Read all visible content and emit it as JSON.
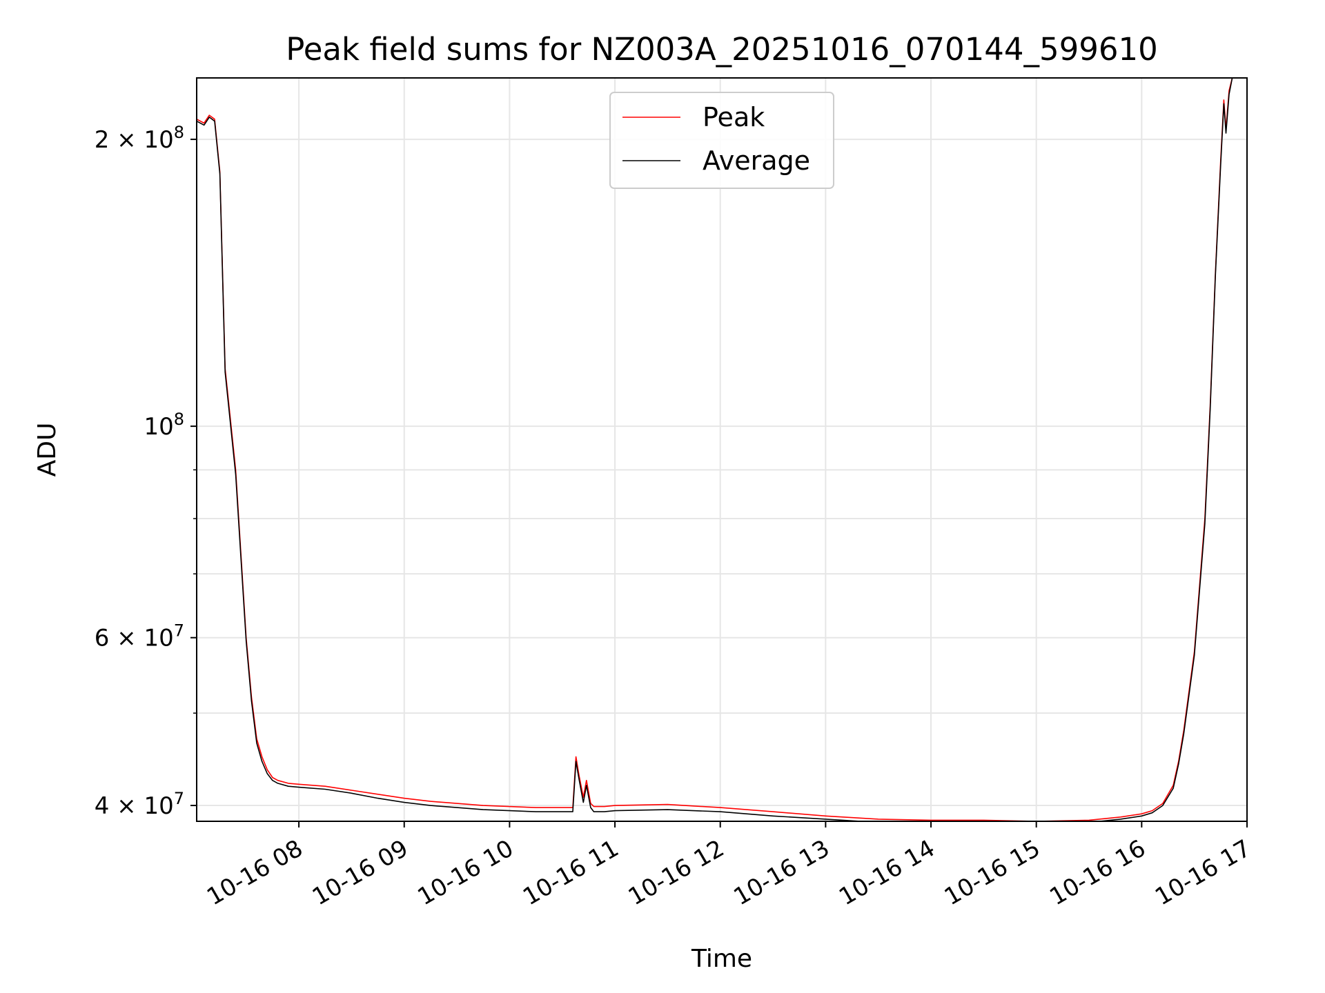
{
  "chart_data": {
    "type": "line",
    "title": "Peak field sums for NZ003A_20251016_070144_599610",
    "xlabel": "Time",
    "ylabel": "ADU",
    "y_scale": "log",
    "xlim_hours": [
      7.03,
      17.0
    ],
    "ylim": [
      38500000,
      232000000
    ],
    "grid": true,
    "legend_position": "upper center",
    "x_ticks": [
      {
        "value": 8,
        "label": "10-16 08"
      },
      {
        "value": 9,
        "label": "10-16 09"
      },
      {
        "value": 10,
        "label": "10-16 10"
      },
      {
        "value": 11,
        "label": "10-16 11"
      },
      {
        "value": 12,
        "label": "10-16 12"
      },
      {
        "value": 13,
        "label": "10-16 13"
      },
      {
        "value": 14,
        "label": "10-16 14"
      },
      {
        "value": 15,
        "label": "10-16 15"
      },
      {
        "value": 16,
        "label": "10-16 16"
      },
      {
        "value": 17,
        "label": "10-16 17"
      }
    ],
    "y_major_ticks": [
      {
        "value": 40000000,
        "mantissa": "4",
        "exponent": "7"
      },
      {
        "value": 60000000,
        "mantissa": "6",
        "exponent": "7"
      },
      {
        "value": 100000000,
        "mantissa": "",
        "exponent": "8"
      },
      {
        "value": 200000000,
        "mantissa": "2",
        "exponent": "8"
      }
    ],
    "y_minor_ticks": [
      50000000,
      70000000,
      80000000,
      90000000
    ],
    "series": [
      {
        "name": "Peak",
        "color": "#ff0000",
        "x": [
          7.03,
          7.1,
          7.15,
          7.2,
          7.25,
          7.3,
          7.4,
          7.5,
          7.55,
          7.6,
          7.65,
          7.7,
          7.75,
          7.8,
          7.9,
          8.0,
          8.25,
          8.5,
          8.75,
          9.0,
          9.25,
          9.5,
          9.75,
          10.0,
          10.25,
          10.4,
          10.6,
          10.63,
          10.66,
          10.7,
          10.73,
          10.77,
          10.8,
          10.9,
          11.0,
          11.5,
          12.0,
          12.5,
          13.0,
          13.5,
          14.0,
          14.5,
          15.0,
          15.5,
          15.8,
          16.0,
          16.1,
          16.2,
          16.3,
          16.35,
          16.4,
          16.5,
          16.6,
          16.65,
          16.7,
          16.75,
          16.78,
          16.8,
          16.83,
          16.86,
          16.9,
          17.0
        ],
        "y": [
          210000000,
          208000000,
          212000000,
          210000000,
          185000000,
          115000000,
          90000000,
          60000000,
          52000000,
          47000000,
          45000000,
          43600000,
          42800000,
          42500000,
          42200000,
          42100000,
          41900000,
          41500000,
          41100000,
          40700000,
          40400000,
          40200000,
          40000000,
          39900000,
          39800000,
          39800000,
          39800000,
          45000000,
          43000000,
          40800000,
          42500000,
          40200000,
          39900000,
          39900000,
          40000000,
          40100000,
          39800000,
          39400000,
          39000000,
          38700000,
          38600000,
          38600000,
          38500000,
          38600000,
          38900000,
          39200000,
          39500000,
          40200000,
          42000000,
          44500000,
          48000000,
          58000000,
          80000000,
          105000000,
          145000000,
          190000000,
          220000000,
          205000000,
          225000000,
          232000000,
          232000000,
          232000000
        ]
      },
      {
        "name": "Average",
        "color": "#000000",
        "x": [
          7.03,
          7.1,
          7.15,
          7.2,
          7.25,
          7.3,
          7.4,
          7.5,
          7.55,
          7.6,
          7.65,
          7.7,
          7.75,
          7.8,
          7.9,
          8.0,
          8.25,
          8.5,
          8.75,
          9.0,
          9.25,
          9.5,
          9.75,
          10.0,
          10.25,
          10.4,
          10.6,
          10.63,
          10.66,
          10.7,
          10.73,
          10.77,
          10.8,
          10.9,
          11.0,
          11.5,
          12.0,
          12.5,
          13.0,
          13.5,
          14.0,
          14.5,
          15.0,
          15.5,
          15.8,
          16.0,
          16.1,
          16.2,
          16.3,
          16.35,
          16.4,
          16.5,
          16.6,
          16.65,
          16.7,
          16.75,
          16.78,
          16.8,
          16.83,
          16.86,
          16.9,
          17.0
        ],
        "y": [
          209000000,
          207000000,
          211000000,
          209000000,
          184000000,
          114000000,
          89000000,
          59500000,
          51500000,
          46500000,
          44500000,
          43200000,
          42500000,
          42200000,
          41900000,
          41800000,
          41600000,
          41200000,
          40700000,
          40300000,
          40000000,
          39800000,
          39600000,
          39500000,
          39400000,
          39400000,
          39400000,
          44500000,
          42600000,
          40300000,
          42000000,
          39800000,
          39400000,
          39400000,
          39500000,
          39600000,
          39400000,
          39000000,
          38700000,
          38400000,
          38300000,
          38300000,
          38300000,
          38400000,
          38700000,
          39000000,
          39300000,
          40000000,
          41700000,
          44200000,
          47600000,
          57500000,
          79000000,
          104000000,
          144000000,
          188000000,
          218000000,
          203000000,
          223000000,
          232000000,
          232000000,
          232000000
        ]
      }
    ]
  }
}
